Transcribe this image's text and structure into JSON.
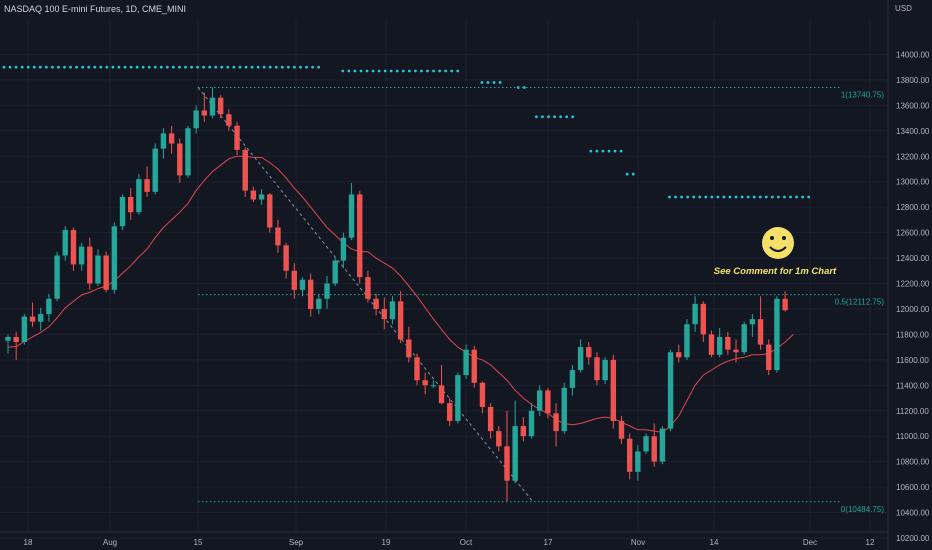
{
  "header": {
    "title": "NASDAQ 100 E-mini Futures, 1D, CME_MINI",
    "currency": "USD"
  },
  "annotation": {
    "text": "See Comment for 1m Chart",
    "icon": "smiley-face-icon"
  },
  "colors": {
    "background": "#131722",
    "bull": "#26a69a",
    "bear": "#ef5350",
    "ma": "#e0474c",
    "fib": "#26a69a",
    "dots": "#26c6da",
    "note": "#f5e16a"
  },
  "chart_data": {
    "type": "candlestick",
    "ylim": [
      10150,
      14350
    ],
    "y_ticks": [
      10200,
      10400,
      10600,
      10800,
      11000,
      11200,
      11400,
      11600,
      11800,
      12000,
      12200,
      12400,
      12600,
      12800,
      13000,
      13200,
      13400,
      13600,
      13800,
      14000
    ],
    "x_ticks": [
      "18",
      "Aug",
      "15",
      "Sep",
      "19",
      "Oct",
      "17",
      "Nov",
      "14",
      "Dec",
      "12"
    ],
    "fib_levels": [
      {
        "label": "1(13740.75)",
        "value": 13740.75
      },
      {
        "label": "0.5(12112.75)",
        "value": 12112.75
      },
      {
        "label": "0(10484.75)",
        "value": 10484.75
      }
    ],
    "candles": [
      [
        11750,
        11800,
        11650,
        11780
      ],
      [
        11780,
        11820,
        11600,
        11740
      ],
      [
        11740,
        11960,
        11720,
        11940
      ],
      [
        11940,
        12050,
        11860,
        11900
      ],
      [
        11900,
        12010,
        11830,
        11960
      ],
      [
        11960,
        12120,
        11900,
        12080
      ],
      [
        12080,
        12450,
        12060,
        12420
      ],
      [
        12420,
        12650,
        12380,
        12620
      ],
      [
        12620,
        12640,
        12300,
        12350
      ],
      [
        12350,
        12520,
        12300,
        12490
      ],
      [
        12490,
        12560,
        12150,
        12200
      ],
      [
        12200,
        12470,
        12180,
        12420
      ],
      [
        12420,
        12450,
        12130,
        12150
      ],
      [
        12150,
        12680,
        12120,
        12650
      ],
      [
        12650,
        12900,
        12620,
        12880
      ],
      [
        12880,
        12950,
        12700,
        12760
      ],
      [
        12760,
        13060,
        12740,
        13020
      ],
      [
        13020,
        13120,
        12880,
        12920
      ],
      [
        12920,
        13300,
        12900,
        13260
      ],
      [
        13260,
        13420,
        13180,
        13380
      ],
      [
        13380,
        13440,
        13220,
        13300
      ],
      [
        13300,
        13340,
        12990,
        13050
      ],
      [
        13050,
        13440,
        13030,
        13420
      ],
      [
        13420,
        13600,
        13380,
        13560
      ],
      [
        13560,
        13700,
        13470,
        13520
      ],
      [
        13520,
        13740,
        13500,
        13660
      ],
      [
        13660,
        13680,
        13500,
        13530
      ],
      [
        13530,
        13570,
        13400,
        13440
      ],
      [
        13440,
        13470,
        13210,
        13250
      ],
      [
        13250,
        13270,
        12880,
        12930
      ],
      [
        12930,
        12960,
        12840,
        12860
      ],
      [
        12860,
        12940,
        12820,
        12900
      ],
      [
        12900,
        12910,
        12600,
        12640
      ],
      [
        12640,
        12700,
        12440,
        12500
      ],
      [
        12500,
        12520,
        12240,
        12300
      ],
      [
        12300,
        12360,
        12080,
        12150
      ],
      [
        12150,
        12250,
        12100,
        12230
      ],
      [
        12230,
        12280,
        11940,
        12000
      ],
      [
        12000,
        12120,
        11960,
        12080
      ],
      [
        12080,
        12260,
        12000,
        12200
      ],
      [
        12200,
        12400,
        12180,
        12380
      ],
      [
        12380,
        12600,
        12320,
        12560
      ],
      [
        12560,
        12990,
        12540,
        12900
      ],
      [
        12900,
        12930,
        12200,
        12250
      ],
      [
        12250,
        12300,
        12050,
        12080
      ],
      [
        12080,
        12120,
        11950,
        12000
      ],
      [
        12000,
        12090,
        11840,
        11920
      ],
      [
        11920,
        12100,
        11880,
        12060
      ],
      [
        12060,
        12140,
        11730,
        11760
      ],
      [
        11760,
        11860,
        11580,
        11620
      ],
      [
        11620,
        11650,
        11400,
        11440
      ],
      [
        11440,
        11500,
        11330,
        11400
      ],
      [
        11400,
        11440,
        11380,
        11400
      ],
      [
        11400,
        11560,
        11250,
        11260
      ],
      [
        11260,
        11300,
        11080,
        11120
      ],
      [
        11120,
        11500,
        11100,
        11480
      ],
      [
        11480,
        11720,
        11450,
        11680
      ],
      [
        11680,
        11710,
        11380,
        11420
      ],
      [
        11420,
        11430,
        11180,
        11230
      ],
      [
        11230,
        11260,
        10980,
        11040
      ],
      [
        11040,
        11080,
        10880,
        10920
      ],
      [
        10920,
        11200,
        10490,
        10650
      ],
      [
        10650,
        11280,
        10630,
        11080
      ],
      [
        11080,
        11150,
        10960,
        11000
      ],
      [
        11000,
        11260,
        10980,
        11200
      ],
      [
        11200,
        11400,
        11160,
        11360
      ],
      [
        11360,
        11380,
        11140,
        11180
      ],
      [
        11180,
        11260,
        10920,
        11040
      ],
      [
        11040,
        11420,
        11020,
        11380
      ],
      [
        11380,
        11560,
        11320,
        11520
      ],
      [
        11520,
        11760,
        11500,
        11700
      ],
      [
        11700,
        11740,
        11560,
        11620
      ],
      [
        11620,
        11660,
        11400,
        11440
      ],
      [
        11440,
        11620,
        11410,
        11600
      ],
      [
        11600,
        11640,
        11060,
        11120
      ],
      [
        11120,
        11160,
        10940,
        10980
      ],
      [
        10980,
        11020,
        10660,
        10720
      ],
      [
        10720,
        10930,
        10650,
        10880
      ],
      [
        10880,
        11020,
        10860,
        11000
      ],
      [
        11000,
        11100,
        10760,
        10800
      ],
      [
        10800,
        11080,
        10780,
        11060
      ],
      [
        11060,
        11680,
        11040,
        11660
      ],
      [
        11660,
        11720,
        11580,
        11620
      ],
      [
        11620,
        11920,
        11600,
        11880
      ],
      [
        11880,
        12100,
        11820,
        12040
      ],
      [
        12040,
        12060,
        11740,
        11800
      ],
      [
        11800,
        11830,
        11620,
        11640
      ],
      [
        11640,
        11850,
        11620,
        11780
      ],
      [
        11780,
        11820,
        11640,
        11680
      ],
      [
        11680,
        11760,
        11580,
        11660
      ],
      [
        11660,
        11900,
        11640,
        11880
      ],
      [
        11880,
        11960,
        11780,
        11920
      ],
      [
        11920,
        12100,
        11680,
        11720
      ],
      [
        11720,
        11760,
        11480,
        11520
      ],
      [
        11520,
        12100,
        11500,
        12080
      ],
      [
        12080,
        12140,
        11980,
        11990
      ]
    ],
    "ma_line": [
      11700,
      11705,
      11745,
      11780,
      11815,
      11860,
      11930,
      12010,
      12060,
      12110,
      12130,
      12160,
      12180,
      12220,
      12280,
      12340,
      12410,
      12470,
      12560,
      12640,
      12700,
      12760,
      12830,
      12930,
      13010,
      13080,
      13130,
      13180,
      13200,
      13200,
      13190,
      13190,
      13150,
      13100,
      13030,
      12950,
      12880,
      12800,
      12720,
      12640,
      12580,
      12520,
      12470,
      12450,
      12450,
      12400,
      12360,
      12320,
      12260,
      12180,
      12100,
      12010,
      11920,
      11840,
      11760,
      11700,
      11660,
      11620,
      11600,
      11560,
      11500,
      11440,
      11360,
      11300,
      11250,
      11210,
      11180,
      11130,
      11100,
      11090,
      11100,
      11120,
      11140,
      11150,
      11140,
      11110,
      11080,
      11050,
      11050,
      11040,
      11030,
      11080,
      11160,
      11280,
      11400,
      11480,
      11520,
      11560,
      11590,
      11610,
      11620,
      11640,
      11640,
      11650,
      11690,
      11740,
      11800
    ],
    "dotted_levels": [
      {
        "value": 13900,
        "from": 0,
        "to": 53
      },
      {
        "value": 13870,
        "from": 56,
        "to": 76
      },
      {
        "value": 13780,
        "from": 79,
        "to": 83
      },
      {
        "value": 13740,
        "from": 85,
        "to": 86
      },
      {
        "value": 13510,
        "from": 88,
        "to": 94
      },
      {
        "value": 13240,
        "from": 97,
        "to": 102
      },
      {
        "value": 13060,
        "from": 103,
        "to": 104
      },
      {
        "value": 12880,
        "from": 110,
        "to": 133
      }
    ]
  }
}
